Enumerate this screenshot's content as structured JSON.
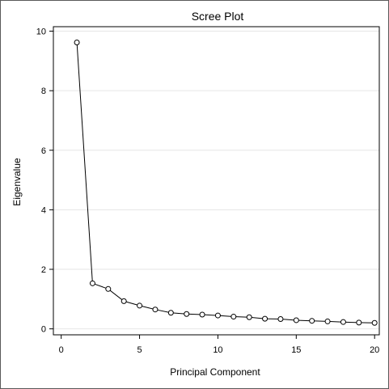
{
  "chart_data": {
    "type": "line",
    "title": "Scree Plot",
    "xlabel": "Principal Component",
    "ylabel": "Eigenvalue",
    "xlim": [
      -0.5,
      20.3
    ],
    "ylim": [
      -0.2,
      10.15
    ],
    "xticks": [
      0,
      5,
      10,
      15,
      20
    ],
    "yticks": [
      0,
      2,
      4,
      6,
      8,
      10
    ],
    "grid": true,
    "marker": "open-circle",
    "x": [
      1,
      2,
      3,
      4,
      5,
      6,
      7,
      8,
      9,
      10,
      11,
      12,
      13,
      14,
      15,
      16,
      17,
      18,
      19,
      20
    ],
    "y": [
      9.62,
      1.53,
      1.34,
      0.93,
      0.78,
      0.65,
      0.54,
      0.5,
      0.48,
      0.45,
      0.41,
      0.39,
      0.34,
      0.33,
      0.29,
      0.27,
      0.25,
      0.23,
      0.21,
      0.2
    ],
    "colors": {
      "line": "#000000",
      "marker_stroke": "#000000",
      "grid": "#e6e6e6",
      "axis": "#000000"
    }
  }
}
